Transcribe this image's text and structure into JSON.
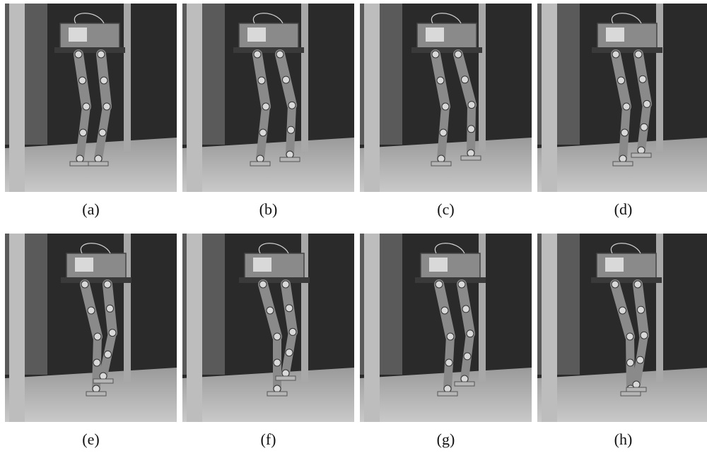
{
  "panels": [
    {
      "label": "(a)",
      "pose": "stand"
    },
    {
      "label": "(b)",
      "pose": "step-right"
    },
    {
      "label": "(c)",
      "pose": "step-forward"
    },
    {
      "label": "(d)",
      "pose": "bend-right"
    },
    {
      "label": "(e)",
      "pose": "single-support"
    },
    {
      "label": "(f)",
      "pose": "single-support-swing"
    },
    {
      "label": "(g)",
      "pose": "lean-left"
    },
    {
      "label": "(h)",
      "pose": "recover"
    }
  ],
  "colors": {
    "background": "#ffffff",
    "wall_dark": "#2a2a2a",
    "floor": "#c9c9c9",
    "pillar": "#bdbdbd",
    "robot_metal": "#8a8a8a",
    "robot_highlight": "#d9d9d9",
    "caption": "#111111"
  }
}
